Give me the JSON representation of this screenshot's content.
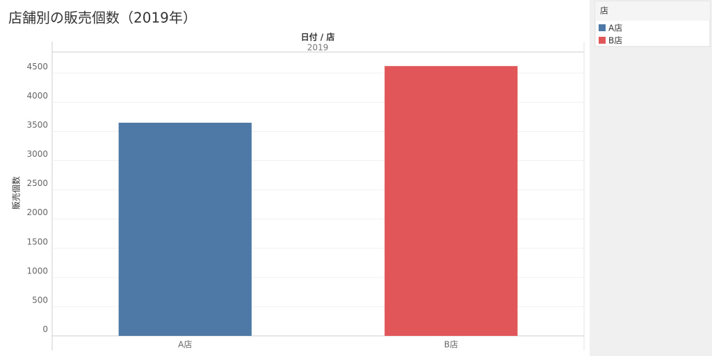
{
  "chart_data": {
    "type": "bar",
    "title": "店舗別の販売個数（2019年）",
    "column_field": "日付 / 店",
    "column_value": "2019",
    "y_label": "販売個数",
    "categories": [
      "A店",
      "B店"
    ],
    "values": [
      3650,
      4620
    ],
    "colors": [
      "#4e79a7",
      "#e15759"
    ],
    "ylim": [
      0,
      4860
    ],
    "yticks": [
      0,
      500,
      1000,
      1500,
      2000,
      2500,
      3000,
      3500,
      4000,
      4500
    ],
    "grid": true,
    "legend_title": "店",
    "legend_position": "right"
  }
}
